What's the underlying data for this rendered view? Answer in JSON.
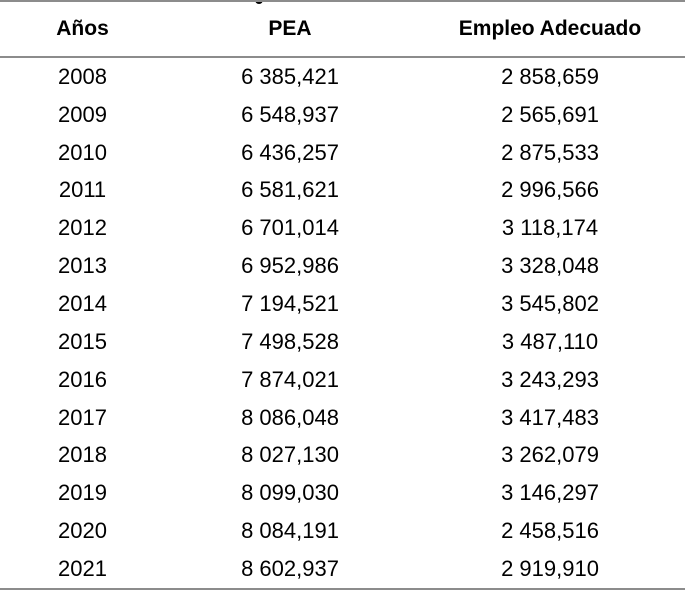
{
  "table": {
    "headers": {
      "year": "Años",
      "pea": "PEA",
      "empleo": "Empleo Adecuado"
    },
    "rows": [
      {
        "year": "2008",
        "pea": "6 385,421",
        "empleo": "2 858,659"
      },
      {
        "year": "2009",
        "pea": "6 548,937",
        "empleo": "2 565,691"
      },
      {
        "year": "2010",
        "pea": "6 436,257",
        "empleo": "2 875,533"
      },
      {
        "year": "2011",
        "pea": "6 581,621",
        "empleo": "2 996,566"
      },
      {
        "year": "2012",
        "pea": "6 701,014",
        "empleo": "3 118,174"
      },
      {
        "year": "2013",
        "pea": "6 952,986",
        "empleo": "3 328,048"
      },
      {
        "year": "2014",
        "pea": "7 194,521",
        "empleo": "3 545,802"
      },
      {
        "year": "2015",
        "pea": "7 498,528",
        "empleo": "3 487,110"
      },
      {
        "year": "2016",
        "pea": "7 874,021",
        "empleo": "3 243,293"
      },
      {
        "year": "2017",
        "pea": "8 086,048",
        "empleo": "3 417,483"
      },
      {
        "year": "2018",
        "pea": "8 027,130",
        "empleo": "3 262,079"
      },
      {
        "year": "2019",
        "pea": "8 099,030",
        "empleo": "3 146,297"
      },
      {
        "year": "2020",
        "pea": "8 084,191",
        "empleo": "2 458,516"
      },
      {
        "year": "2021",
        "pea": "8 602,937",
        "empleo": "2 919,910"
      }
    ]
  }
}
